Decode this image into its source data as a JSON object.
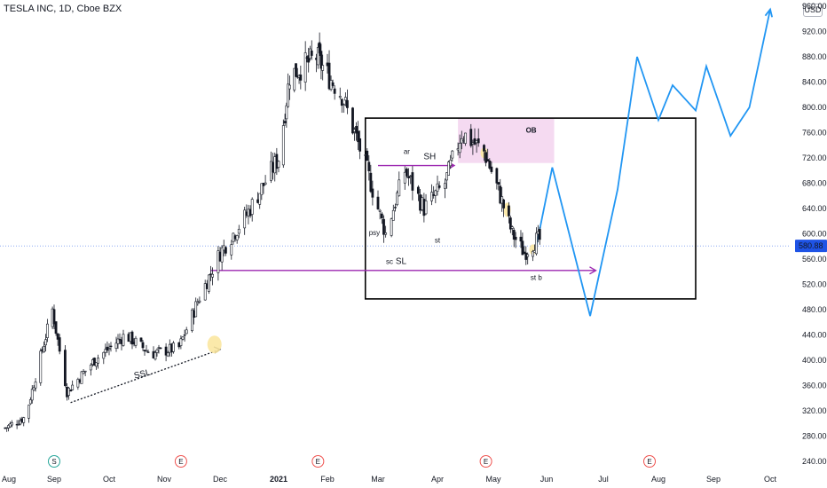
{
  "header": {
    "symbol_title": "TESLA INC, 1D, Cboe BZX",
    "currency": "USD"
  },
  "chart_data": {
    "type": "candlestick",
    "x_axis_labels": [
      "Aug",
      "Sep",
      "Oct",
      "Nov",
      "Dec",
      "2021",
      "Feb",
      "Mar",
      "Apr",
      "May",
      "Jun",
      "Jul",
      "Aug",
      "Sep",
      "Oct"
    ],
    "y_axis_labels": [
      "960.00",
      "920.00",
      "880.00",
      "840.00",
      "800.00",
      "760.00",
      "720.00",
      "680.00",
      "640.00",
      "600.00",
      "560.00",
      "520.00",
      "480.00",
      "440.00",
      "400.00",
      "360.00",
      "320.00",
      "280.00",
      "240.00"
    ],
    "ylim": [
      225,
      965
    ],
    "current_price": 580.88,
    "current_price_label": "580.88",
    "series": [
      {
        "name": "daily_close_approx",
        "dates": [
          "2020-08-01",
          "2020-08-15",
          "2020-08-31",
          "2020-09-08",
          "2020-09-23",
          "2020-10-10",
          "2020-10-25",
          "2020-11-09",
          "2020-11-20",
          "2020-12-01",
          "2020-12-15",
          "2021-01-01",
          "2021-01-08",
          "2021-01-25",
          "2021-02-09",
          "2021-02-23",
          "2021-03-05",
          "2021-03-15",
          "2021-03-25",
          "2021-04-05",
          "2021-04-14",
          "2021-04-26",
          "2021-05-05",
          "2021-05-12",
          "2021-05-19",
          "2021-05-26"
        ],
        "values": [
          290,
          310,
          480,
          350,
          400,
          440,
          410,
          420,
          500,
          570,
          630,
          720,
          850,
          880,
          820,
          700,
          600,
          700,
          640,
          680,
          760,
          730,
          660,
          600,
          570,
          590
        ]
      }
    ],
    "projection_path": {
      "dates": [
        "2021-05-26",
        "2021-06-04",
        "2021-06-24",
        "2021-07-09",
        "2021-07-20",
        "2021-08-01",
        "2021-08-09",
        "2021-08-22",
        "2021-08-28",
        "2021-09-10",
        "2021-09-20",
        "2021-10-09"
      ],
      "values": [
        580,
        705,
        470,
        670,
        880,
        780,
        835,
        795,
        865,
        755,
        800,
        955
      ]
    },
    "annotations": {
      "ssl_label": "SSL",
      "sh_label": "SH",
      "sl_label": "SL",
      "ob_label": "OB",
      "ar_label": "ar",
      "psy_label": "psy",
      "sc_label": "sc",
      "st_label": "st",
      "stb_label": "st b"
    },
    "events": [
      {
        "label": "S",
        "color": "#26a69a"
      },
      {
        "label": "E",
        "color": "#ef5350"
      },
      {
        "label": "E",
        "color": "#ef5350"
      },
      {
        "label": "E",
        "color": "#ef5350"
      },
      {
        "label": "E",
        "color": "#ef5350"
      }
    ],
    "colors": {
      "candle": "#131722",
      "projection": "#2196f3",
      "level_line": "#9c27b0",
      "order_block": "#f3d4ee",
      "price_tag": "#1e53e5"
    }
  }
}
